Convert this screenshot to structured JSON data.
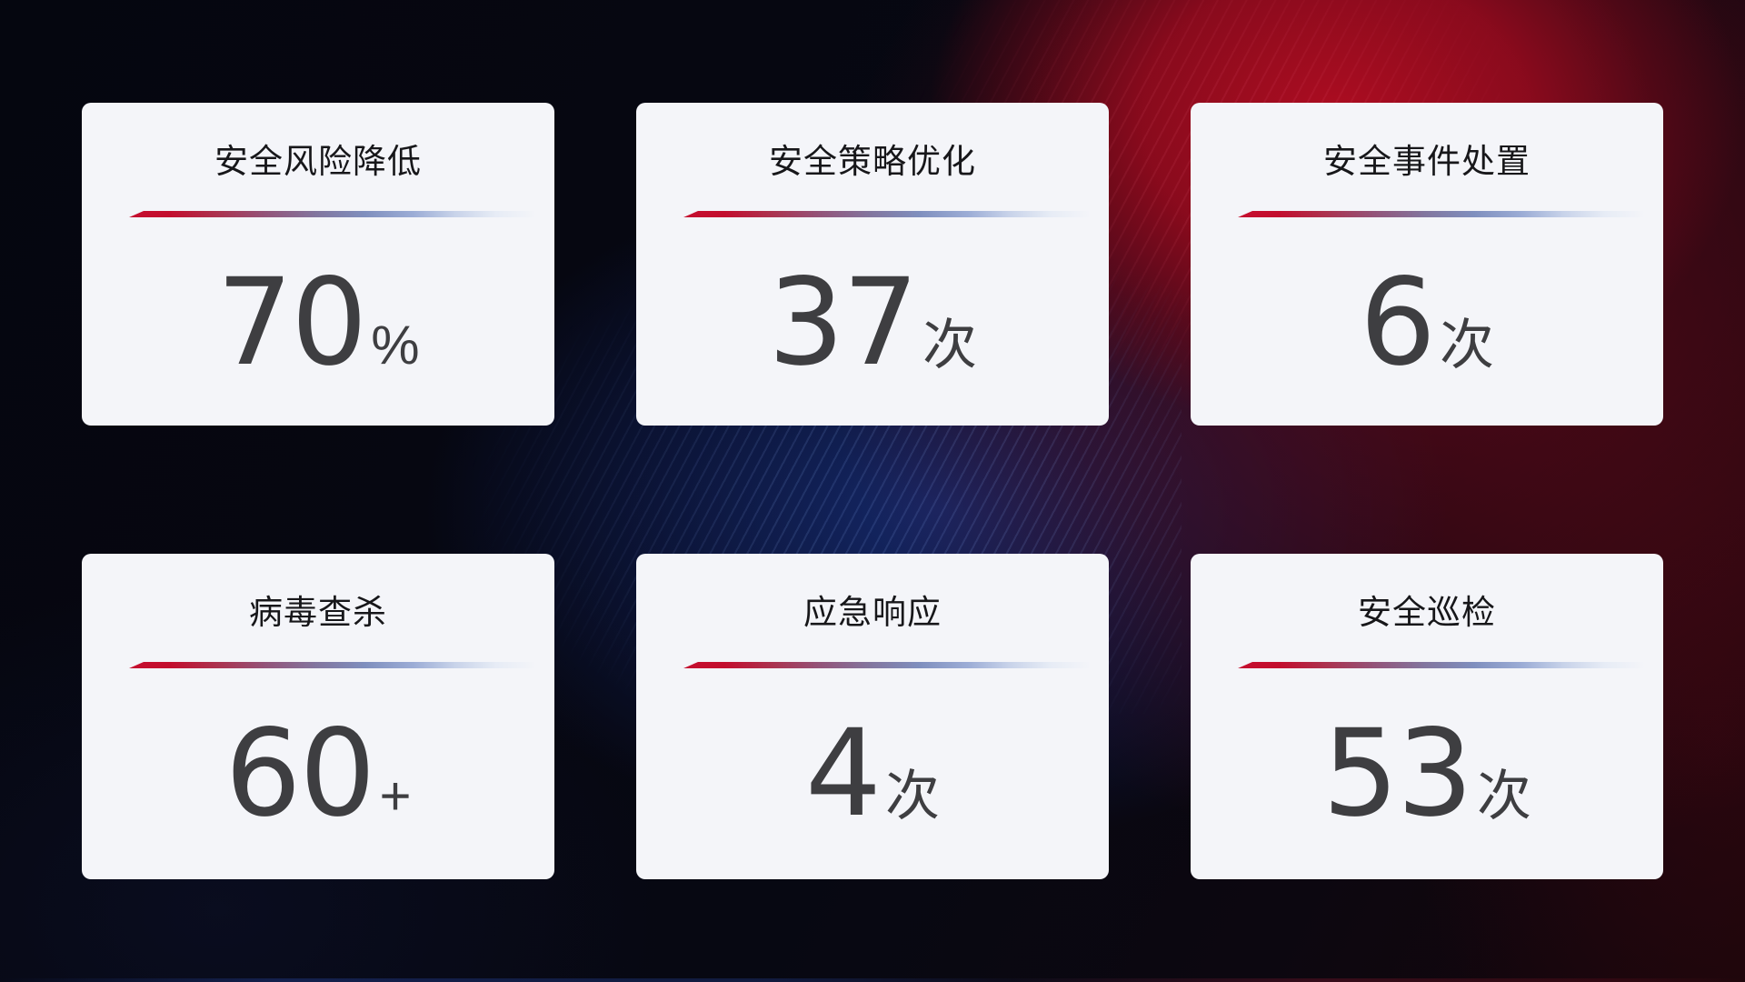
{
  "theme": {
    "card_background": "#f4f5f9",
    "title_color": "#17171a",
    "value_color": "#3e3e41",
    "divider_red": "#c40e2e",
    "divider_blue": "#9fb3d9",
    "background_red_glow": "#a30d1d",
    "background_blue_glow": "#162c74",
    "background_dark": "#05060e"
  },
  "cards": [
    {
      "title": "安全风险降低",
      "value": "70",
      "unit": "%"
    },
    {
      "title": "安全策略优化",
      "value": "37",
      "unit": "次"
    },
    {
      "title": "安全事件处置",
      "value": "6",
      "unit": "次"
    },
    {
      "title": "病毒查杀",
      "value": "60",
      "unit": "+"
    },
    {
      "title": "应急响应",
      "value": "4",
      "unit": "次"
    },
    {
      "title": "安全巡检",
      "value": "53",
      "unit": "次"
    }
  ]
}
